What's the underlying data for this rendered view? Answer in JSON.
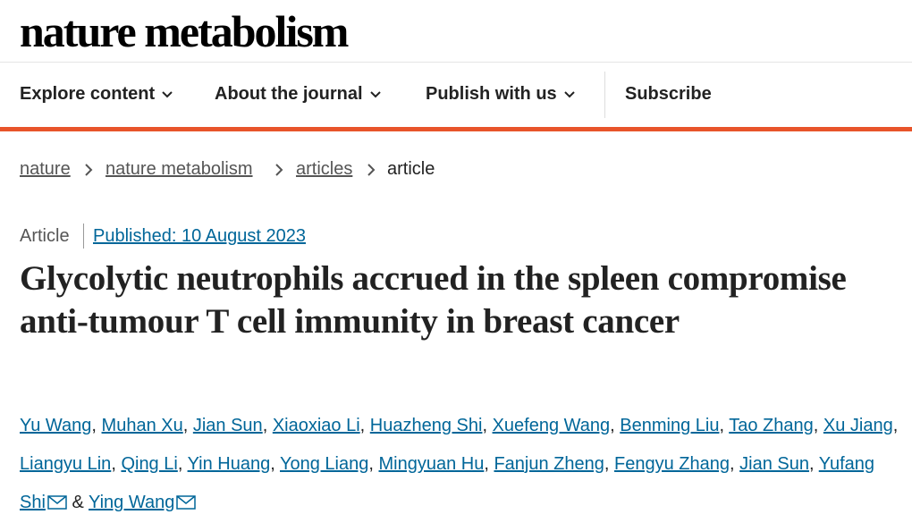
{
  "header": {
    "logo": "nature metabolism",
    "nav": [
      "Explore content",
      "About the journal",
      "Publish with us"
    ],
    "subscribe": "Subscribe"
  },
  "breadcrumb": [
    "nature",
    "nature metabolism",
    "articles",
    "article"
  ],
  "article": {
    "type": "Article",
    "published": "Published: 10 August 2023",
    "title": "Glycolytic neutrophils accrued in the spleen compromise anti-tumour T cell immunity in breast cancer",
    "separator": ",",
    "last_separator": "&",
    "authors": [
      {
        "name": "Yu Wang",
        "email": false
      },
      {
        "name": "Muhan Xu",
        "email": false
      },
      {
        "name": "Jian Sun",
        "email": false
      },
      {
        "name": "Xiaoxiao Li",
        "email": false
      },
      {
        "name": "Huazheng Shi",
        "email": false
      },
      {
        "name": "Xuefeng Wang",
        "email": false
      },
      {
        "name": "Benming Liu",
        "email": false
      },
      {
        "name": "Tao Zhang",
        "email": false
      },
      {
        "name": "Xu Jiang",
        "email": false
      },
      {
        "name": "Liangyu Lin",
        "email": false
      },
      {
        "name": "Qing Li",
        "email": false
      },
      {
        "name": "Yin Huang",
        "email": false
      },
      {
        "name": "Yong Liang",
        "email": false
      },
      {
        "name": "Mingyuan Hu",
        "email": false
      },
      {
        "name": "Fanjun Zheng",
        "email": false
      },
      {
        "name": "Fengyu Zhang",
        "email": false
      },
      {
        "name": "Jian Sun",
        "email": false
      },
      {
        "name": "Yufang Shi",
        "email": true
      },
      {
        "name": "Ying Wang",
        "email": true
      }
    ]
  }
}
